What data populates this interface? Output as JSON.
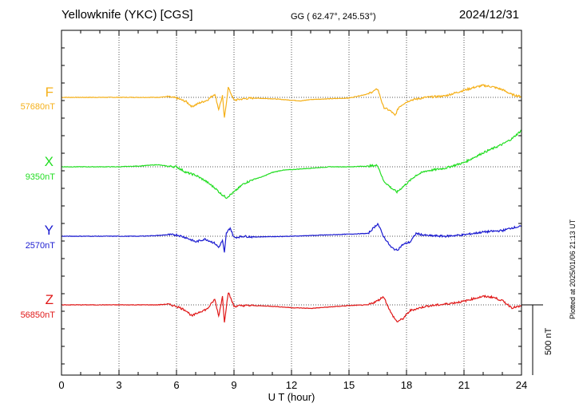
{
  "header": {
    "station": "Yellowknife (YKC)  [CGS]",
    "coords": "GG ( 62.47°, 245.53°)",
    "date": "2024/12/31"
  },
  "plotted_note": "Plotted at 2025/01/06 21:13 UT",
  "scale_bar_label": "500 nT",
  "chart_data": {
    "type": "line",
    "title": "Yellowknife (YKC)  [CGS]",
    "xlabel": "U T (hour)",
    "xlim": [
      0,
      24
    ],
    "x_ticks": [
      "0",
      "3",
      "6",
      "9",
      "12",
      "15",
      "18",
      "21",
      "24"
    ],
    "grid": true,
    "scale_bar_nT": 500,
    "series": [
      {
        "name": "F",
        "baseline": "57680nT",
        "color": "#f5b019",
        "x": [
          0,
          4,
          5,
          5.5,
          6,
          6.5,
          6.8,
          7.2,
          7.6,
          8,
          8.2,
          8.4,
          8.5,
          8.7,
          9,
          9.5,
          10,
          11,
          12,
          12.5,
          13,
          14,
          15,
          16,
          16.5,
          16.8,
          17.2,
          17.4,
          17.6,
          17.9,
          18.2,
          19,
          20,
          21,
          21.5,
          22,
          22.5,
          23,
          23.5,
          24
        ],
        "y": [
          0,
          0,
          0,
          5,
          -5,
          -30,
          -65,
          -40,
          -20,
          25,
          -85,
          10,
          -150,
          70,
          -20,
          -10,
          -5,
          -10,
          -20,
          -25,
          -15,
          -10,
          -5,
          25,
          60,
          -70,
          -100,
          -130,
          -70,
          -40,
          -20,
          0,
          10,
          50,
          70,
          85,
          75,
          55,
          20,
          5
        ]
      },
      {
        "name": "X",
        "baseline": "9350nT",
        "color": "#22dd22",
        "x": [
          0,
          3,
          4,
          5,
          5.5,
          6,
          6.5,
          7,
          7.5,
          8,
          8.3,
          8.6,
          9,
          9.5,
          10,
          10.5,
          11,
          11.5,
          12,
          13,
          14,
          15,
          16,
          16.5,
          16.8,
          17.2,
          17.5,
          18,
          18.5,
          19,
          20,
          21,
          22,
          23,
          23.5,
          24
        ],
        "y": [
          0,
          0,
          5,
          15,
          5,
          0,
          -40,
          -60,
          -100,
          -150,
          -190,
          -220,
          -180,
          -120,
          -90,
          -70,
          -40,
          -25,
          -20,
          -10,
          0,
          0,
          5,
          10,
          -100,
          -150,
          -180,
          -120,
          -60,
          -30,
          -10,
          30,
          100,
          160,
          200,
          260
        ]
      },
      {
        "name": "Y",
        "baseline": "2570nT",
        "color": "#1a1ad0",
        "x": [
          0,
          4,
          5,
          5.5,
          6,
          6.5,
          7,
          7.5,
          8,
          8.2,
          8.4,
          8.5,
          8.6,
          8.8,
          9,
          9.5,
          10,
          12,
          14,
          16,
          16.5,
          16.8,
          17.2,
          17.5,
          17.8,
          18.2,
          18.5,
          19,
          20,
          21,
          22,
          23,
          23.5,
          24
        ],
        "y": [
          0,
          0,
          5,
          10,
          10,
          -10,
          -40,
          -20,
          -50,
          -80,
          -30,
          -120,
          20,
          60,
          -10,
          0,
          -5,
          0,
          10,
          20,
          90,
          0,
          -80,
          -100,
          -60,
          -40,
          20,
          5,
          0,
          10,
          30,
          40,
          60,
          70
        ]
      },
      {
        "name": "Z",
        "baseline": "56850nT",
        "color": "#e01818",
        "x": [
          0,
          4,
          5,
          5.5,
          6,
          6.5,
          6.8,
          7.2,
          7.6,
          8,
          8.2,
          8.4,
          8.5,
          8.7,
          9,
          9.5,
          10,
          11,
          12,
          13,
          14,
          15,
          16,
          16.5,
          16.8,
          17.2,
          17.5,
          17.8,
          18.2,
          19,
          20,
          21,
          21.5,
          22,
          22.5,
          23,
          23.5,
          24
        ],
        "y": [
          0,
          0,
          0,
          5,
          -10,
          -40,
          -80,
          -50,
          -30,
          40,
          -80,
          60,
          -120,
          90,
          -10,
          -5,
          -5,
          -10,
          -20,
          -25,
          -15,
          -5,
          0,
          30,
          60,
          -60,
          -120,
          -100,
          -40,
          -10,
          5,
          25,
          45,
          60,
          55,
          30,
          -20,
          -10
        ]
      }
    ]
  }
}
